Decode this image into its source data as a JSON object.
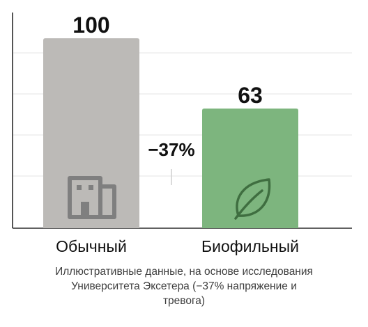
{
  "chart_data": {
    "type": "bar",
    "categories": [
      "Обычный",
      "Биофильный"
    ],
    "values": [
      100,
      63
    ],
    "value_labels": [
      "100",
      "63"
    ],
    "ylim": [
      0,
      100
    ],
    "grid": true,
    "annotation": "−37%",
    "colors": [
      "#bcbab7",
      "#7db57e"
    ],
    "icons": [
      "building-icon",
      "leaf-icon"
    ]
  },
  "caption": {
    "lines": [
      "Иллюстративные данные, на основе исследования",
      "Университета Эксетера (−37% напряжение и",
      "тревога)"
    ]
  }
}
